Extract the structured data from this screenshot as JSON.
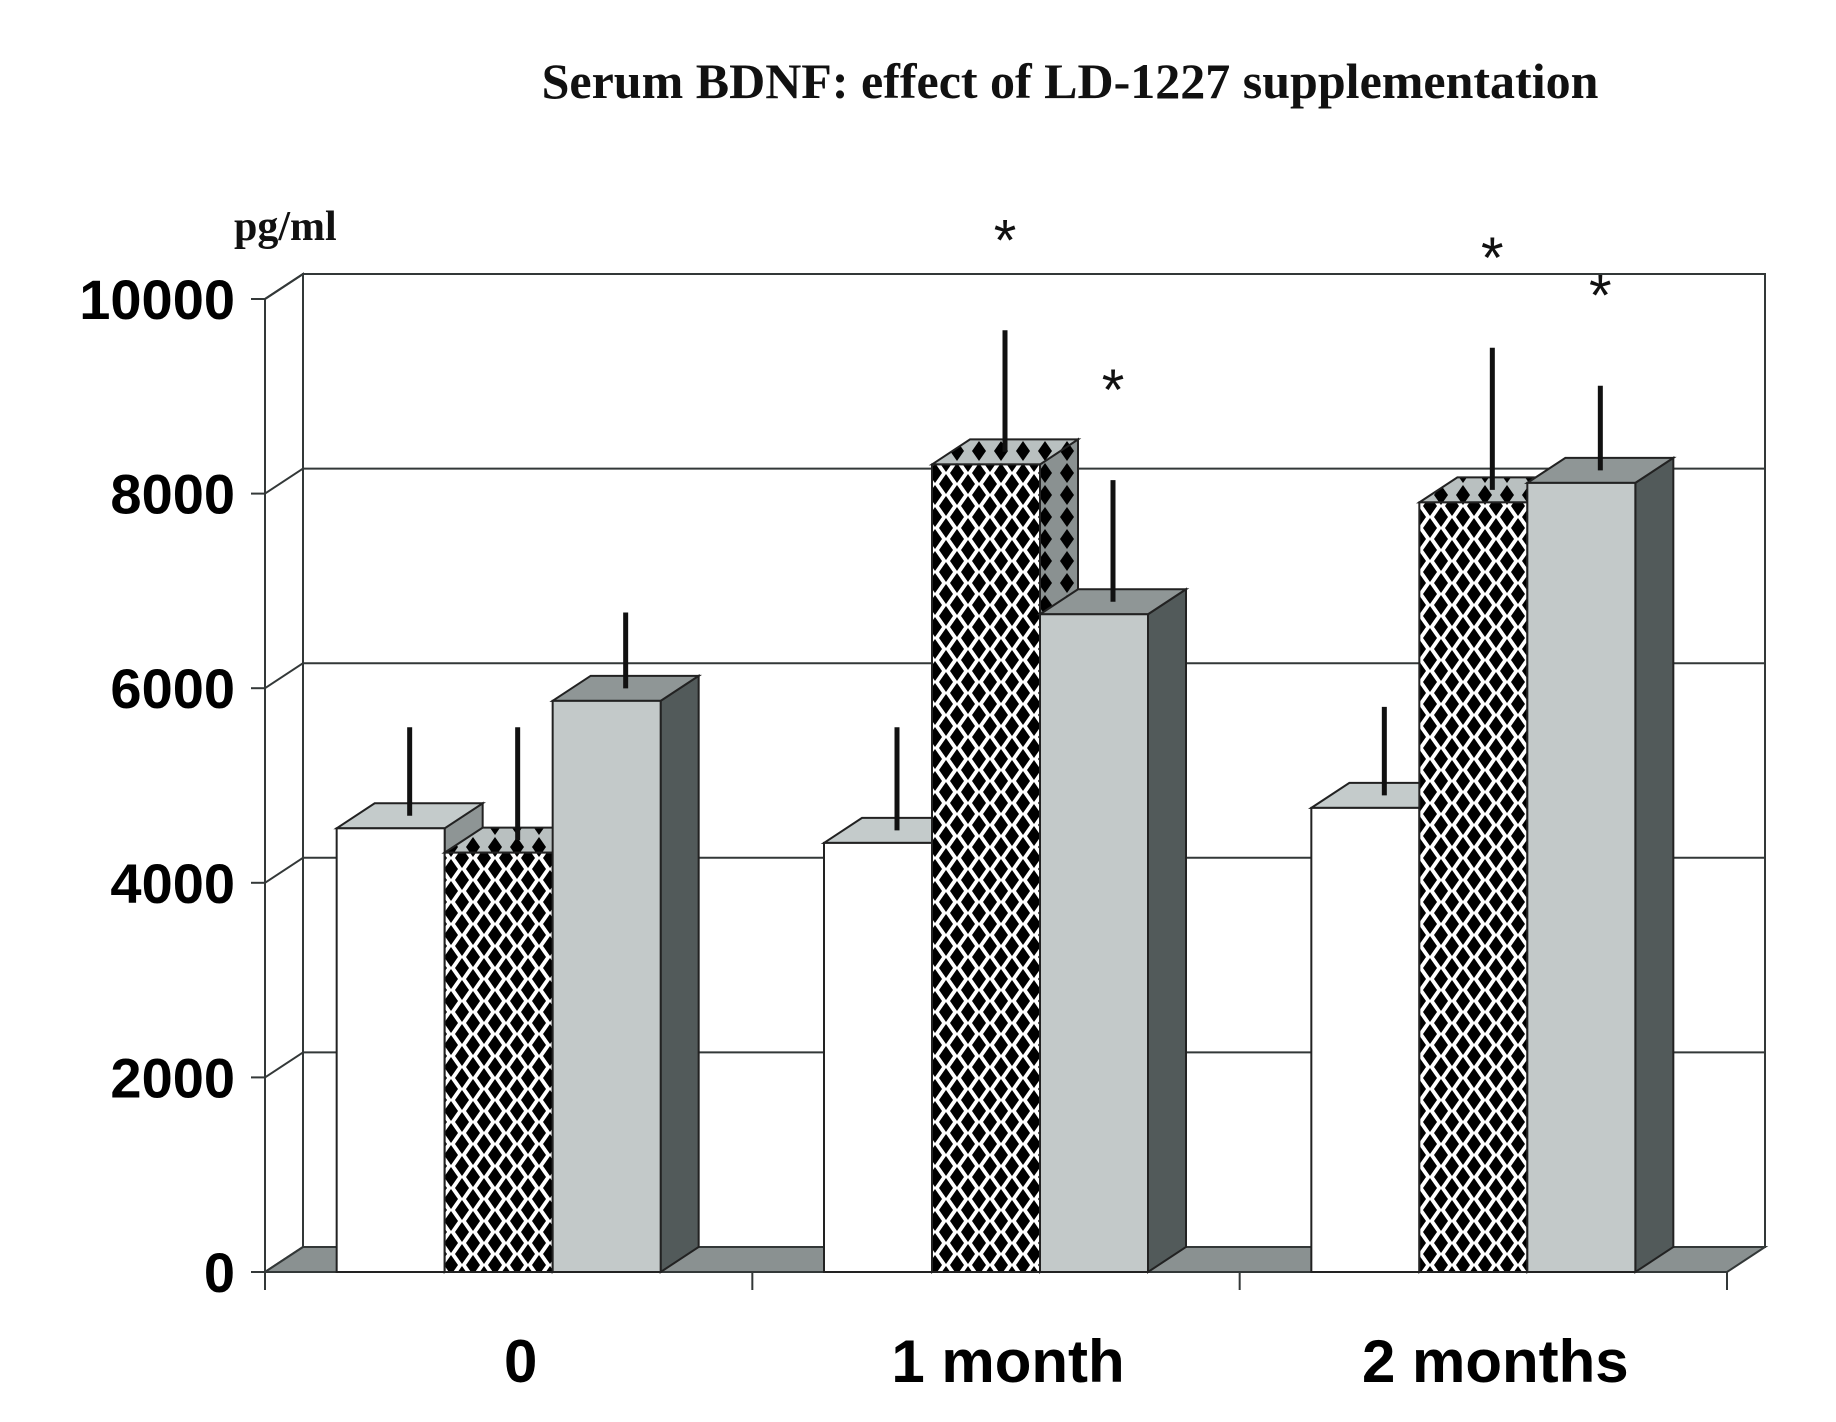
{
  "chart_data": {
    "type": "bar",
    "style": "3d-clustered-column",
    "title": "Serum BDNF: effect of LD-1227 supplementation",
    "xlabel": "",
    "ylabel": "pg/ml",
    "ylim": [
      0,
      10000
    ],
    "yticks": [
      0,
      2000,
      4000,
      6000,
      8000,
      10000
    ],
    "ytick_labels": [
      "0",
      "2000",
      "4000",
      "6000",
      "8000",
      "10000"
    ],
    "grid": true,
    "legend": null,
    "categories": [
      "0",
      "1 month",
      "2 months"
    ],
    "series": [
      {
        "name": "white bars",
        "fill": "white",
        "values": [
          4560,
          4410,
          4770
        ],
        "error_upper": [
          5470,
          5470,
          5680
        ],
        "significant": [
          false,
          false,
          false
        ]
      },
      {
        "name": "checkered bars",
        "fill": "checker-pattern",
        "values": [
          4310,
          8300,
          7910
        ],
        "error_upper": [
          5470,
          9550,
          9370
        ],
        "significant": [
          false,
          true,
          true
        ]
      },
      {
        "name": "gray bars",
        "fill": "gray",
        "values": [
          5870,
          6760,
          8110
        ],
        "error_upper": [
          6650,
          8010,
          8980
        ],
        "significant": [
          false,
          true,
          true
        ]
      }
    ],
    "annotation_symbol": "*"
  },
  "colors": {
    "white_face": "#ffffff",
    "white_top": "#c4cbcb",
    "white_side": "#8e9595",
    "gray_face": "#c3c9c9",
    "gray_top": "#8f9696",
    "gray_side": "#525a5a",
    "floor": "#8a9191",
    "line": "#333838"
  }
}
